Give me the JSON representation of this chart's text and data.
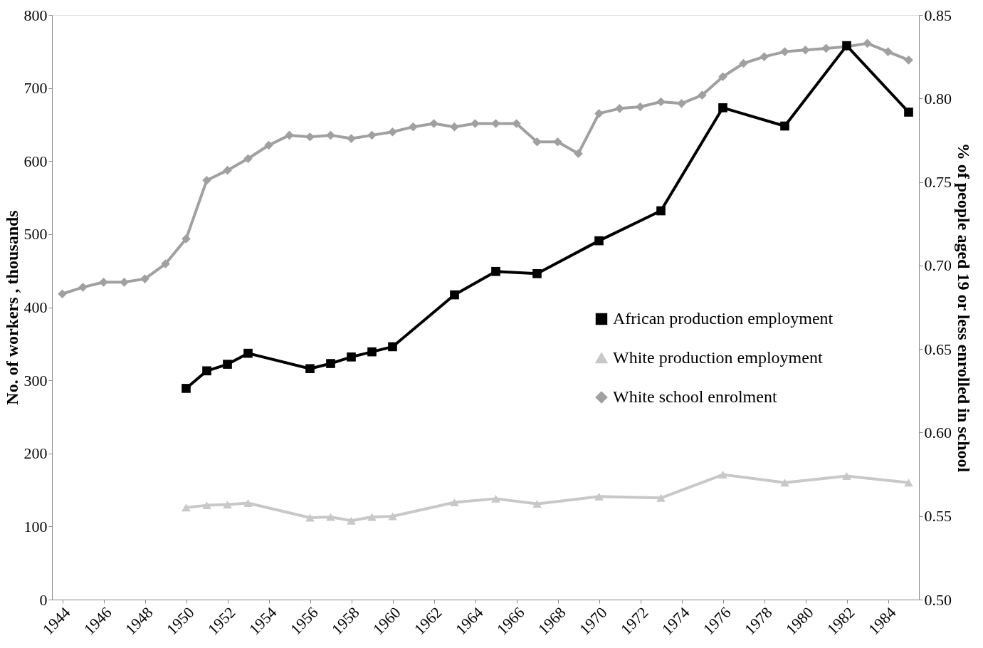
{
  "chart_data": {
    "type": "line",
    "xlabel": null,
    "ylabel": "No. of workers , thousands",
    "y2label": "% of people aged 19 or less enrolled in school",
    "xlim": [
      1943.5,
      1985.5
    ],
    "xticks": [
      1944,
      1946,
      1948,
      1950,
      1952,
      1954,
      1956,
      1958,
      1960,
      1962,
      1964,
      1966,
      1968,
      1970,
      1972,
      1974,
      1976,
      1978,
      1980,
      1982,
      1984
    ],
    "ylim": [
      0,
      800
    ],
    "yticks": [
      0,
      100,
      200,
      300,
      400,
      500,
      600,
      700,
      800
    ],
    "y2lim": [
      0.5,
      0.85
    ],
    "y2ticks": [
      {
        "value": 0.5,
        "label": "0.50"
      },
      {
        "value": 0.55,
        "label": "0.55"
      },
      {
        "value": 0.6,
        "label": "0.60"
      },
      {
        "value": 0.65,
        "label": "0.65"
      },
      {
        "value": 0.7,
        "label": "0.70"
      },
      {
        "value": 0.75,
        "label": "0.75"
      },
      {
        "value": 0.8,
        "label": "0.80"
      },
      {
        "value": 0.85,
        "label": "0.85"
      }
    ],
    "grid": false,
    "legend": "right",
    "line_style": "solid",
    "series": [
      {
        "name": "African production employment",
        "color": "#000000",
        "marker": "square",
        "x": [
          1950,
          1951,
          1952,
          1953,
          1956,
          1957,
          1958,
          1959,
          1960,
          1963,
          1965,
          1967,
          1970,
          1973,
          1976,
          1979,
          1982,
          1985
        ],
        "values": [
          289,
          313,
          322,
          337,
          316,
          323,
          332,
          339,
          346,
          417,
          449,
          446,
          491,
          532,
          673,
          648,
          758,
          667
        ]
      },
      {
        "name": "White production employment",
        "color": "#c8c8c8",
        "marker": "triangle",
        "x": [
          1950,
          1951,
          1952,
          1953,
          1956,
          1957,
          1958,
          1959,
          1960,
          1963,
          1965,
          1967,
          1970,
          1973,
          1976,
          1979,
          1982,
          1985
        ],
        "values": [
          126,
          129,
          130,
          132,
          112,
          113,
          108,
          113,
          114,
          133,
          138,
          131,
          141,
          139,
          171,
          160,
          169,
          160
        ]
      },
      {
        "name": "White school enrolment",
        "color": "#a0a0a0",
        "marker": "diamond",
        "axis": "y2",
        "x": [
          1944,
          1945,
          1946,
          1947,
          1948,
          1949,
          1950,
          1951,
          1952,
          1953,
          1954,
          1955,
          1956,
          1957,
          1958,
          1959,
          1960,
          1961,
          1962,
          1963,
          1964,
          1965,
          1966,
          1967,
          1968,
          1969,
          1970,
          1971,
          1972,
          1973,
          1974,
          1975,
          1976,
          1977,
          1978,
          1979,
          1980,
          1981,
          1982,
          1983,
          1984,
          1985
        ],
        "values": [
          0.683,
          0.687,
          0.69,
          0.69,
          0.692,
          0.701,
          0.716,
          0.751,
          0.757,
          0.764,
          0.772,
          0.778,
          0.777,
          0.778,
          0.776,
          0.778,
          0.78,
          0.783,
          0.785,
          0.783,
          0.785,
          0.785,
          0.785,
          0.774,
          0.774,
          0.767,
          0.791,
          0.794,
          0.795,
          0.798,
          0.797,
          0.802,
          0.813,
          0.821,
          0.825,
          0.828,
          0.829,
          0.83,
          0.831,
          0.833,
          0.828,
          0.823
        ]
      }
    ]
  }
}
